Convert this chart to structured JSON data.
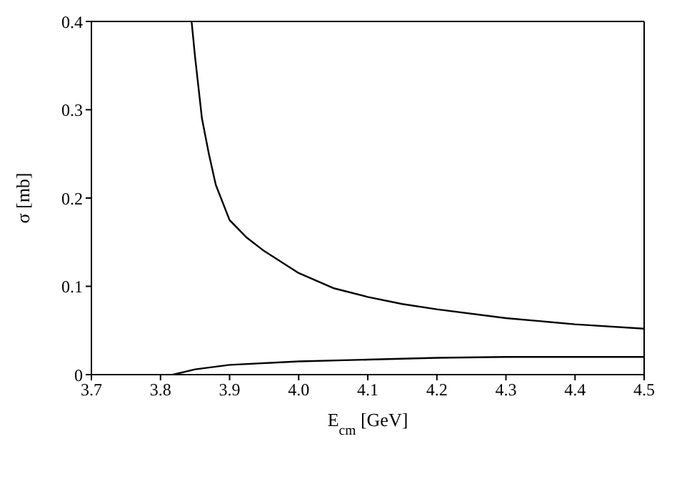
{
  "chart_data": {
    "type": "line",
    "xlabel": "E$_{cm}$ [GeV]",
    "ylabel": "σ [mb]",
    "marker": "none",
    "line_style": "solid",
    "xlim": [
      3.7,
      4.5
    ],
    "xticks": [
      3.7,
      3.8,
      3.9,
      {
        "value": 4,
        "label": "4.0"
      },
      4.1,
      4.2,
      4.3,
      4.4,
      4.5
    ],
    "ylim": [
      0,
      0.4
    ],
    "yticks": [
      0,
      0.1,
      0.2,
      0.3,
      0.4
    ],
    "series": [
      {
        "color": "#000000",
        "x": [
          3.845,
          3.85,
          3.86,
          3.87,
          3.88,
          3.9,
          3.925,
          3.95,
          4.0,
          4.05,
          4.1,
          4.15,
          4.2,
          4.3,
          4.4,
          4.5
        ],
        "values": [
          0.4,
          0.36,
          0.29,
          0.25,
          0.215,
          0.175,
          0.155,
          0.14,
          0.115,
          0.098,
          0.088,
          0.08,
          0.074,
          0.064,
          0.057,
          0.052
        ]
      },
      {
        "color": "#000000",
        "x": [
          3.818,
          3.85,
          3.9,
          4.0,
          4.1,
          4.2,
          4.3,
          4.5
        ],
        "values": [
          0,
          0.006,
          0.011,
          0.015,
          0.017,
          0.019,
          0.02,
          0.02
        ]
      }
    ]
  }
}
